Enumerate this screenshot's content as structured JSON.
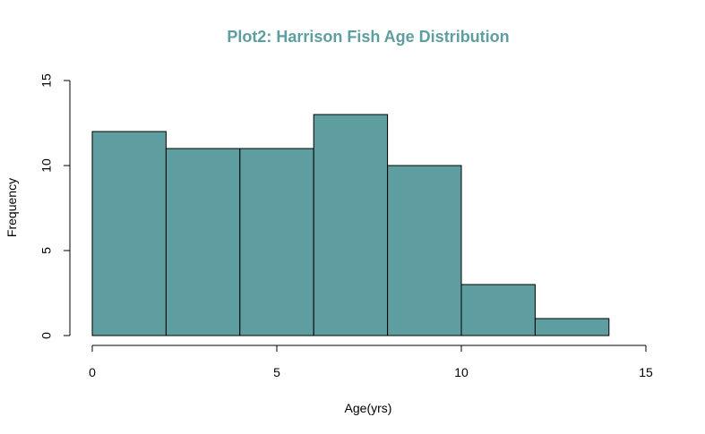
{
  "chart_data": {
    "type": "bar",
    "title": "Plot2: Harrison Fish Age Distribution",
    "xlabel": "Age(yrs)",
    "ylabel": "Frequency",
    "bins": [
      {
        "start": 0,
        "end": 2,
        "value": 12
      },
      {
        "start": 2,
        "end": 4,
        "value": 11
      },
      {
        "start": 4,
        "end": 6,
        "value": 11
      },
      {
        "start": 6,
        "end": 8,
        "value": 13
      },
      {
        "start": 8,
        "end": 10,
        "value": 10
      },
      {
        "start": 10,
        "end": 12,
        "value": 3
      },
      {
        "start": 12,
        "end": 14,
        "value": 1
      }
    ],
    "xlim": [
      0,
      15
    ],
    "ylim": [
      0,
      15
    ],
    "xticks": [
      "0",
      "5",
      "10",
      "15"
    ],
    "yticks": [
      "0",
      "5",
      "10",
      "15"
    ],
    "grid": false,
    "colors": {
      "bar": "#5F9EA0",
      "title": "#5F9EA0"
    }
  }
}
